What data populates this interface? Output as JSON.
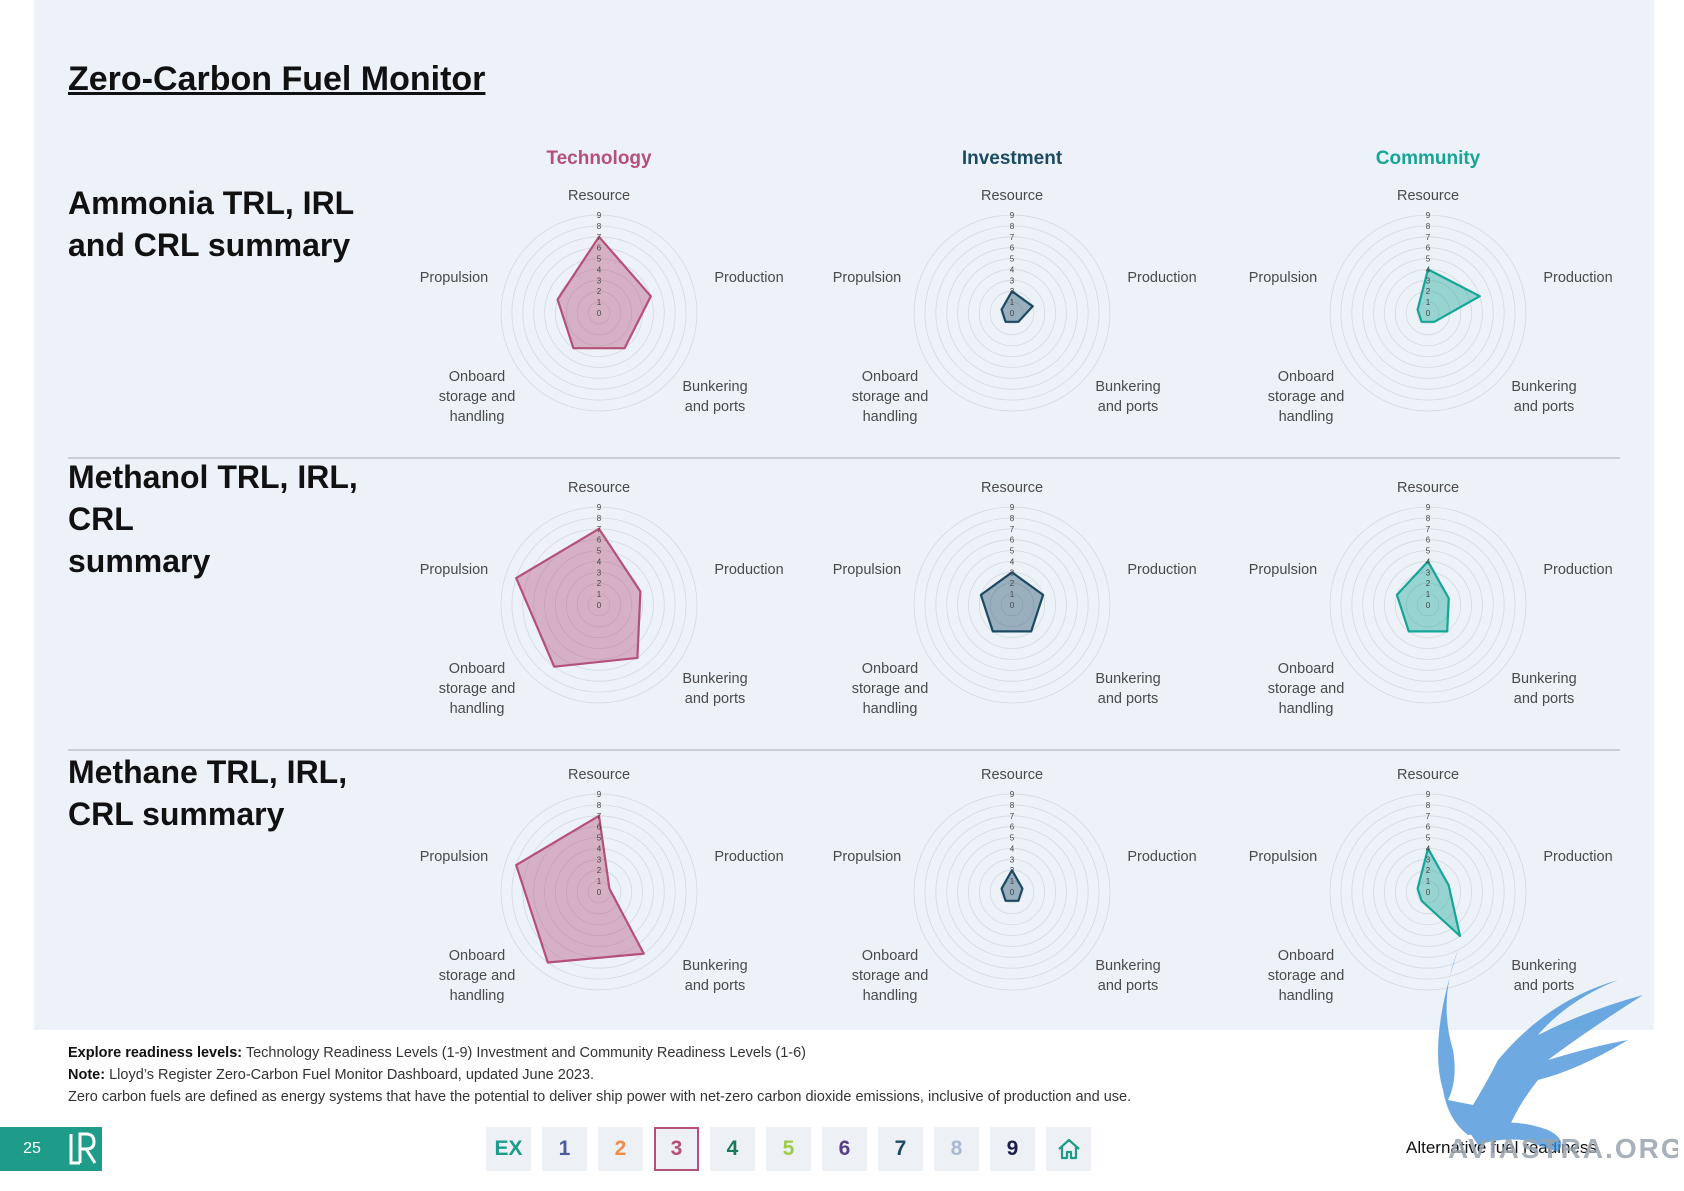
{
  "page": {
    "title": "Zero-Carbon Fuel Monitor ",
    "columns": [
      {
        "label": "Technology",
        "color": "#b5507a"
      },
      {
        "label": "Investment",
        "color": "#1d4a63"
      },
      {
        "label": "Community",
        "color": "#16a596"
      }
    ],
    "rows": [
      {
        "title": "Ammonia TRL, IRL\nand CRL summary"
      },
      {
        "title": "Methanol TRL, IRL,\nCRL\nsummary"
      },
      {
        "title": "Methane TRL, IRL,\nCRL summary"
      }
    ]
  },
  "chart_data": [
    {
      "type": "radar",
      "fuel": "Ammonia",
      "metric": "Technology",
      "axes": [
        "Resource",
        "Production",
        "Bunkering and ports",
        "Onboard storage and handling",
        "Propulsion"
      ],
      "ticks": [
        0,
        1,
        2,
        3,
        4,
        5,
        6,
        7,
        8,
        9
      ],
      "values": [
        7,
        5,
        4,
        4,
        4
      ],
      "color": "#b5507a"
    },
    {
      "type": "radar",
      "fuel": "Ammonia",
      "metric": "Investment",
      "axes": [
        "Resource",
        "Production",
        "Bunkering and ports",
        "Onboard storage and handling",
        "Propulsion"
      ],
      "ticks": [
        0,
        1,
        2,
        3,
        4,
        5,
        6,
        7,
        8,
        9
      ],
      "values": [
        2,
        2,
        1,
        1,
        1
      ],
      "color": "#1d4a63"
    },
    {
      "type": "radar",
      "fuel": "Ammonia",
      "metric": "Community",
      "axes": [
        "Resource",
        "Production",
        "Bunkering and ports",
        "Onboard storage and handling",
        "Propulsion"
      ],
      "ticks": [
        0,
        1,
        2,
        3,
        4,
        5,
        6,
        7,
        8,
        9
      ],
      "values": [
        4,
        5,
        1,
        1,
        1
      ],
      "color": "#16a596"
    },
    {
      "type": "radar",
      "fuel": "Methanol",
      "metric": "Technology",
      "axes": [
        "Resource",
        "Production",
        "Bunkering and ports",
        "Onboard storage and handling",
        "Propulsion"
      ],
      "ticks": [
        0,
        1,
        2,
        3,
        4,
        5,
        6,
        7,
        8,
        9
      ],
      "values": [
        7,
        4,
        6,
        7,
        8
      ],
      "color": "#b5507a"
    },
    {
      "type": "radar",
      "fuel": "Methanol",
      "metric": "Investment",
      "axes": [
        "Resource",
        "Production",
        "Bunkering and ports",
        "Onboard storage and handling",
        "Propulsion"
      ],
      "ticks": [
        0,
        1,
        2,
        3,
        4,
        5,
        6,
        7,
        8,
        9
      ],
      "values": [
        3,
        3,
        3,
        3,
        3
      ],
      "color": "#1d4a63"
    },
    {
      "type": "radar",
      "fuel": "Methanol",
      "metric": "Community",
      "axes": [
        "Resource",
        "Production",
        "Bunkering and ports",
        "Onboard storage and handling",
        "Propulsion"
      ],
      "ticks": [
        0,
        1,
        2,
        3,
        4,
        5,
        6,
        7,
        8,
        9
      ],
      "values": [
        4,
        2,
        3,
        3,
        3
      ],
      "color": "#16a596"
    },
    {
      "type": "radar",
      "fuel": "Methane",
      "metric": "Technology",
      "axes": [
        "Resource",
        "Production",
        "Bunkering and ports",
        "Onboard storage and handling",
        "Propulsion"
      ],
      "ticks": [
        0,
        1,
        2,
        3,
        4,
        5,
        6,
        7,
        8,
        9
      ],
      "values": [
        7,
        1,
        7,
        8,
        8
      ],
      "color": "#b5507a"
    },
    {
      "type": "radar",
      "fuel": "Methane",
      "metric": "Investment",
      "axes": [
        "Resource",
        "Production",
        "Bunkering and ports",
        "Onboard storage and handling",
        "Propulsion"
      ],
      "ticks": [
        0,
        1,
        2,
        3,
        4,
        5,
        6,
        7,
        8,
        9
      ],
      "values": [
        2,
        1,
        1,
        1,
        1
      ],
      "color": "#1d4a63"
    },
    {
      "type": "radar",
      "fuel": "Methane",
      "metric": "Community",
      "axes": [
        "Resource",
        "Production",
        "Bunkering and ports",
        "Onboard storage and handling",
        "Propulsion"
      ],
      "ticks": [
        0,
        1,
        2,
        3,
        4,
        5,
        6,
        7,
        8,
        9
      ],
      "values": [
        4,
        2,
        5,
        1,
        1
      ],
      "color": "#16a596"
    }
  ],
  "notes": {
    "explore_label": "Explore readiness levels:",
    "explore_text": " Technology Readiness Levels (1-9) Investment and Community Readiness Levels (1-6)",
    "note_label": "Note:",
    "note_text": " Lloyd’s Register Zero-Carbon Fuel Monitor Dashboard, updated June 2023.",
    "definition": "Zero carbon fuels are defined as energy systems that have the potential to deliver ship power with net-zero carbon dioxide emissions, inclusive of production and use."
  },
  "footer": {
    "page_number": "25",
    "logo_icon": "lr-logo-icon",
    "label": "Alternative fuel readiness",
    "nav": [
      {
        "label": "EX",
        "color": "#1f9b8a"
      },
      {
        "label": "1",
        "color": "#4b5c9c"
      },
      {
        "label": "2",
        "color": "#f08c4a"
      },
      {
        "label": "3",
        "color": "#b5507a",
        "active": true
      },
      {
        "label": "4",
        "color": "#157a5a"
      },
      {
        "label": "5",
        "color": "#9fcb4a"
      },
      {
        "label": "6",
        "color": "#5a3d8a"
      },
      {
        "label": "7",
        "color": "#1d4a63"
      },
      {
        "label": "8",
        "color": "#aab8d4"
      },
      {
        "label": "9",
        "color": "#1a1f4a"
      },
      {
        "label": "",
        "icon": "home-icon",
        "color": "#1f9b8a"
      }
    ],
    "watermark": "AVIASTRA.ORG"
  }
}
